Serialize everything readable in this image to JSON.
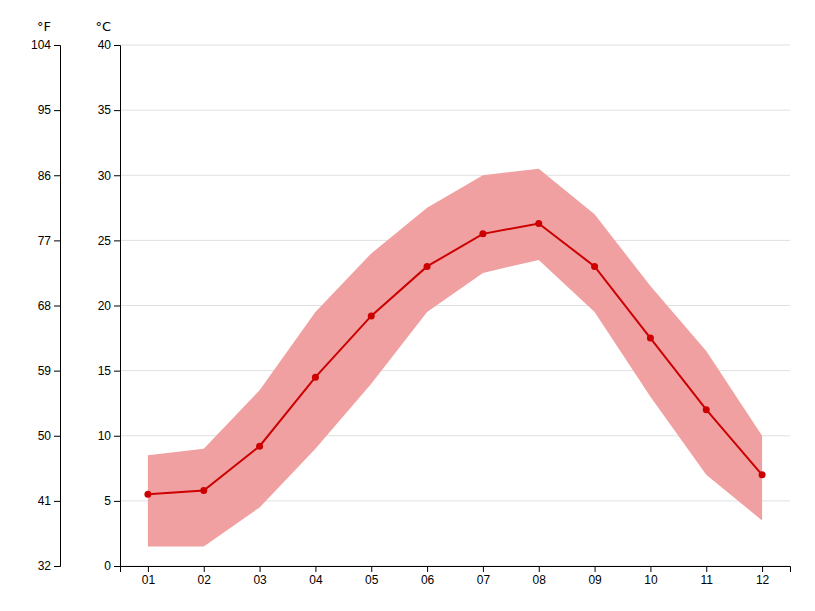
{
  "chart_data": {
    "type": "line",
    "x": [
      1,
      2,
      3,
      4,
      5,
      6,
      7,
      8,
      9,
      10,
      11,
      12
    ],
    "series": [
      {
        "type": "band",
        "color": "#f0a0a0",
        "values": [
          8.5,
          9.0,
          13.5,
          19.5,
          24.0,
          27.5,
          30.0,
          30.5,
          27.0,
          21.5,
          16.5,
          10.0
        ],
        "lower": [
          1.5,
          1.5,
          4.5,
          9.0,
          14.0,
          19.5,
          22.5,
          23.5,
          19.5,
          13.0,
          7.0,
          3.5
        ]
      },
      {
        "type": "line",
        "color": "#cc0000",
        "marker": "circle",
        "values": [
          5.5,
          5.8,
          9.2,
          14.5,
          19.2,
          23.0,
          25.5,
          26.3,
          23.0,
          17.5,
          12.0,
          7.0
        ]
      }
    ],
    "xlim": [
      0.5,
      12.5
    ],
    "xticks": [
      {
        "value": 1,
        "label": "01"
      },
      {
        "value": 2,
        "label": "02"
      },
      {
        "value": 3,
        "label": "03"
      },
      {
        "value": 4,
        "label": "04"
      },
      {
        "value": 5,
        "label": "05"
      },
      {
        "value": 6,
        "label": "06"
      },
      {
        "value": 7,
        "label": "07"
      },
      {
        "value": 8,
        "label": "08"
      },
      {
        "value": 9,
        "label": "09"
      },
      {
        "value": 10,
        "label": "10"
      },
      {
        "value": 11,
        "label": "11"
      },
      {
        "value": 12,
        "label": "12"
      }
    ],
    "ylim": [
      0,
      40
    ],
    "yticks": [
      0,
      5,
      10,
      15,
      20,
      25,
      30,
      35,
      40
    ],
    "ylabel": "°C",
    "y2lim": [
      32,
      104
    ],
    "y2ticks": [
      32,
      41,
      50,
      59,
      68,
      77,
      86,
      95,
      104
    ],
    "y2label": "°F",
    "grid": true
  }
}
